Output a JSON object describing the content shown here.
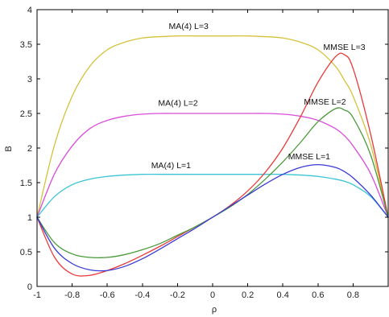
{
  "chart_data": {
    "type": "line",
    "title": "",
    "xlabel": "ρ",
    "ylabel": "B",
    "xlim": [
      -1,
      1
    ],
    "ylim": [
      0,
      4
    ],
    "grid": false,
    "x_ticks": [
      -1,
      -0.8,
      -0.6,
      -0.4,
      -0.2,
      0,
      0.2,
      0.4,
      0.6,
      0.8
    ],
    "x_tick_labels": [
      "-1",
      "-0.8",
      "-0.6",
      "-0.4",
      "-0.2",
      "0",
      "0.2",
      "0.4",
      "0.6",
      "0.8"
    ],
    "y_ticks": [
      0,
      0.5,
      1,
      1.5,
      2,
      2.5,
      3,
      3.5,
      4
    ],
    "y_tick_labels": [
      "0",
      "0.5",
      "1",
      "1.5",
      "2",
      "2.5",
      "3",
      "3.5",
      "4"
    ],
    "x": [
      -1,
      -0.9,
      -0.8,
      -0.7,
      -0.6,
      -0.5,
      -0.4,
      -0.3,
      -0.2,
      -0.1,
      0,
      0.1,
      0.2,
      0.3,
      0.4,
      0.5,
      0.6,
      0.7,
      0.75,
      0.8,
      0.9,
      1
    ],
    "series": [
      {
        "name": "MA(4) L=3",
        "color": "#d4c23c",
        "values": [
          1.0,
          2.05,
          2.75,
          3.18,
          3.42,
          3.53,
          3.59,
          3.61,
          3.62,
          3.62,
          3.62,
          3.62,
          3.62,
          3.61,
          3.59,
          3.53,
          3.42,
          3.18,
          2.98,
          2.75,
          2.05,
          1.0
        ]
      },
      {
        "name": "MA(4) L=2",
        "color": "#d84ed8",
        "values": [
          1.0,
          1.63,
          2.03,
          2.28,
          2.4,
          2.46,
          2.49,
          2.5,
          2.5,
          2.5,
          2.5,
          2.5,
          2.5,
          2.5,
          2.49,
          2.46,
          2.4,
          2.28,
          2.18,
          2.03,
          1.63,
          1.0
        ]
      },
      {
        "name": "MA(4) L=1",
        "color": "#3ac4d4",
        "values": [
          1.0,
          1.3,
          1.47,
          1.55,
          1.59,
          1.61,
          1.62,
          1.62,
          1.62,
          1.62,
          1.62,
          1.62,
          1.62,
          1.62,
          1.62,
          1.61,
          1.59,
          1.55,
          1.52,
          1.47,
          1.3,
          1.0
        ]
      },
      {
        "name": "MMSE L=3",
        "color": "#e83a3a",
        "values": [
          1.0,
          0.42,
          0.18,
          0.16,
          0.23,
          0.33,
          0.45,
          0.58,
          0.72,
          0.86,
          1.0,
          1.17,
          1.38,
          1.65,
          2.0,
          2.45,
          2.95,
          3.32,
          3.35,
          3.15,
          2.2,
          1.0
        ]
      },
      {
        "name": "MMSE L=2",
        "color": "#4a9a3a",
        "values": [
          1.0,
          0.63,
          0.47,
          0.42,
          0.42,
          0.46,
          0.53,
          0.62,
          0.74,
          0.86,
          1.0,
          1.15,
          1.33,
          1.55,
          1.8,
          2.08,
          2.38,
          2.57,
          2.55,
          2.44,
          1.9,
          1.0
        ]
      },
      {
        "name": "MMSE L=1",
        "color": "#3a3ad4",
        "values": [
          1.0,
          0.55,
          0.33,
          0.24,
          0.23,
          0.29,
          0.4,
          0.54,
          0.69,
          0.84,
          1.0,
          1.16,
          1.32,
          1.48,
          1.62,
          1.72,
          1.76,
          1.72,
          1.66,
          1.57,
          1.32,
          1.0
        ]
      }
    ],
    "annotations": [
      {
        "text": "MA(4) L=3",
        "x": -0.25,
        "y": 3.72
      },
      {
        "text": "MMSE L=3",
        "x": 0.63,
        "y": 3.42
      },
      {
        "text": "MA(4) L=2",
        "x": -0.31,
        "y": 2.61
      },
      {
        "text": "MMSE L=2",
        "x": 0.52,
        "y": 2.63
      },
      {
        "text": "MA(4) L=1",
        "x": -0.35,
        "y": 1.71
      },
      {
        "text": "MMSE L=1",
        "x": 0.43,
        "y": 1.84
      }
    ]
  }
}
